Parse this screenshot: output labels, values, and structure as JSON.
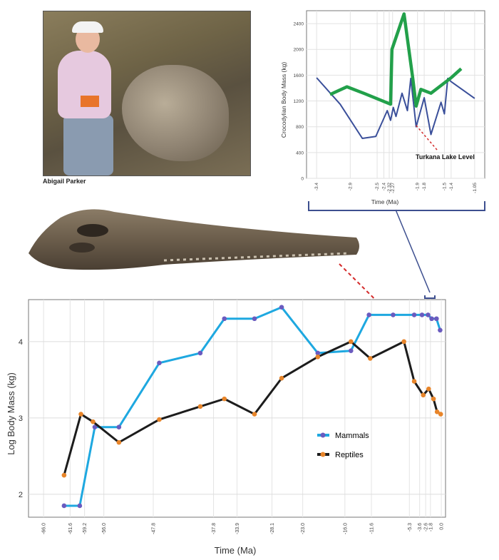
{
  "photo_caption": "Abigail Parker",
  "chart_data": [
    {
      "type": "line",
      "ylabel": "Crocodylian Body Mass (kg)",
      "xlabel": "Time (Ma)",
      "x_ticks": [
        "-3.4",
        "-2.9",
        "-2.5",
        "-2.4",
        "-2.32",
        "-2.27",
        "-1.9",
        "-1.8",
        "-1.5",
        "-1.4",
        "-1.05"
      ],
      "y_ticks": [
        0,
        400,
        800,
        1200,
        1600,
        2000,
        2400
      ],
      "ylim": [
        0,
        2600
      ],
      "annotation": "Turkana Lake Level",
      "series": [
        {
          "color": "#3a4f9a",
          "x": [
            -3.4,
            -3.05,
            -2.72,
            -2.52,
            -2.35,
            -2.3,
            -2.26,
            -2.22,
            -2.13,
            -2.05,
            -2.0,
            -1.92,
            -1.8,
            -1.7,
            -1.55,
            -1.5,
            -1.45,
            -1.4,
            -1.05
          ],
          "y": [
            1560,
            1150,
            620,
            650,
            1050,
            900,
            1100,
            960,
            1320,
            1050,
            1550,
            800,
            1250,
            680,
            1180,
            1000,
            1550,
            1500,
            1240
          ]
        },
        {
          "color": "#22a04a",
          "x": [
            -3.2,
            -2.95,
            -2.7,
            -2.3,
            -2.28,
            -2.1,
            -1.97,
            -1.92,
            -1.85,
            -1.7,
            -1.5,
            -1.4,
            -1.25
          ],
          "y": [
            1300,
            1420,
            1320,
            1150,
            2000,
            2550,
            1550,
            1120,
            1380,
            1320,
            1480,
            1560,
            1700
          ]
        }
      ]
    },
    {
      "type": "line",
      "ylabel": "Log  Body Mass (kg)",
      "xlabel": "Time (Ma)",
      "x_ticks": [
        "-66.0",
        "-61.6",
        "-59.2",
        "-56.0",
        "-47.8",
        "-37.8",
        "-33.9",
        "-28.1",
        "-23.0",
        "-16.0",
        "-11.6",
        "-5.3",
        "-3.6",
        "-2.6",
        "-1.8",
        "0.0"
      ],
      "y_ticks": [
        2,
        3,
        4
      ],
      "ylim": [
        1.7,
        4.55
      ],
      "legend_position": "right",
      "series": [
        {
          "name": "Mammals",
          "color": "#1ea8e0",
          "marker": "#6a5bbf",
          "x": [
            -62.6,
            -60.0,
            -57.5,
            -53.5,
            -46.8,
            -40.0,
            -36.0,
            -31.0,
            -26.5,
            -20.5,
            -15.0,
            -12.0,
            -8.0,
            -4.5,
            -3.2,
            -2.2,
            -1.6,
            -0.8,
            -0.2
          ],
          "y": [
            1.85,
            1.85,
            2.88,
            2.88,
            3.72,
            3.85,
            4.3,
            4.3,
            4.45,
            3.85,
            3.88,
            4.35,
            4.35,
            4.35,
            4.35,
            4.35,
            4.3,
            4.3,
            4.15
          ]
        },
        {
          "name": "Reptiles",
          "color": "#1c1c1c",
          "marker": "#e8852a",
          "x": [
            -62.6,
            -59.8,
            -57.8,
            -53.5,
            -46.8,
            -40.0,
            -36.0,
            -31.0,
            -26.5,
            -20.5,
            -15.0,
            -11.8,
            -6.2,
            -4.5,
            -3.0,
            -2.1,
            -1.3,
            -0.7,
            -0.1
          ],
          "y": [
            2.25,
            3.05,
            2.95,
            2.68,
            2.98,
            3.15,
            3.25,
            3.05,
            3.52,
            3.8,
            4.0,
            3.78,
            4.0,
            3.48,
            3.3,
            3.38,
            3.25,
            3.08,
            3.05
          ]
        }
      ]
    }
  ]
}
